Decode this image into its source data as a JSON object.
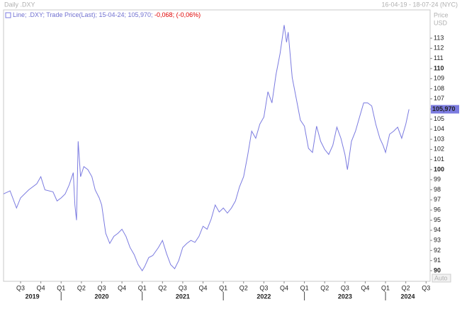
{
  "chart_data": {
    "type": "line",
    "title": "Daily .DXY",
    "date_range": "16-04-19 - 18-07-24 (NYC)",
    "legend": {
      "text": "Line; .DXY; Trade Price(Last); 15-04-24; 105,970;",
      "change": "-0,068;",
      "change_pct": "(-0,06%)"
    },
    "axis_title": [
      "Price",
      "USD"
    ],
    "scale_mode": "Auto",
    "color": "#7b7be0",
    "x": [
      2019.29,
      2019.37,
      2019.45,
      2019.5,
      2019.6,
      2019.7,
      2019.75,
      2019.8,
      2019.9,
      2019.95,
      2020.0,
      2020.05,
      2020.1,
      2020.15,
      2020.17,
      2020.19,
      2020.21,
      2020.24,
      2020.28,
      2020.33,
      2020.38,
      2020.42,
      2020.47,
      2020.5,
      2020.55,
      2020.6,
      2020.65,
      2020.7,
      2020.75,
      2020.8,
      2020.85,
      2020.9,
      2020.95,
      2021.0,
      2021.03,
      2021.08,
      2021.13,
      2021.2,
      2021.25,
      2021.3,
      2021.35,
      2021.4,
      2021.45,
      2021.5,
      2021.55,
      2021.6,
      2021.65,
      2021.7,
      2021.75,
      2021.8,
      2021.85,
      2021.9,
      2021.95,
      2022.0,
      2022.05,
      2022.1,
      2022.15,
      2022.2,
      2022.25,
      2022.3,
      2022.35,
      2022.4,
      2022.45,
      2022.5,
      2022.55,
      2022.6,
      2022.65,
      2022.7,
      2022.75,
      2022.78,
      2022.8,
      2022.85,
      2022.9,
      2022.95,
      2023.0,
      2023.05,
      2023.1,
      2023.15,
      2023.2,
      2023.25,
      2023.3,
      2023.35,
      2023.4,
      2023.45,
      2023.5,
      2023.53,
      2023.58,
      2023.63,
      2023.68,
      2023.73,
      2023.78,
      2023.83,
      2023.88,
      2023.93,
      2023.97,
      2024.0,
      2024.05,
      2024.1,
      2024.15,
      2024.2,
      2024.25,
      2024.29
    ],
    "values": [
      97.6,
      97.9,
      96.2,
      97.2,
      98.0,
      98.6,
      99.3,
      98.0,
      97.8,
      96.9,
      97.2,
      97.6,
      98.5,
      99.7,
      96.5,
      95.0,
      102.8,
      99.3,
      100.3,
      100.0,
      99.3,
      98.0,
      97.2,
      96.5,
      93.7,
      92.7,
      93.4,
      93.7,
      94.1,
      93.4,
      92.3,
      91.6,
      90.6,
      90.0,
      90.4,
      91.3,
      91.5,
      92.3,
      93.0,
      91.7,
      90.6,
      90.2,
      91.0,
      92.3,
      92.7,
      93.0,
      92.8,
      93.4,
      94.4,
      94.1,
      95.1,
      96.5,
      95.8,
      96.2,
      95.7,
      96.2,
      96.9,
      98.3,
      99.3,
      101.4,
      103.8,
      103.1,
      104.5,
      105.2,
      107.7,
      106.6,
      109.4,
      111.5,
      114.3,
      112.6,
      113.6,
      109.1,
      107.0,
      104.9,
      104.3,
      102.1,
      101.7,
      104.3,
      102.8,
      102.0,
      101.5,
      102.4,
      104.2,
      103.1,
      101.5,
      100.0,
      102.8,
      103.8,
      105.2,
      106.6,
      106.6,
      106.3,
      104.5,
      103.1,
      102.4,
      101.7,
      103.5,
      103.8,
      104.2,
      103.1,
      104.5,
      105.97
    ],
    "current_label": {
      "value": 105.97,
      "label": "105,970"
    },
    "xlim": [
      2019.29,
      2024.55
    ],
    "ylim": [
      88.95,
      115.8
    ],
    "yticks": [
      90,
      91,
      92,
      93,
      94,
      95,
      96,
      97,
      98,
      99,
      100,
      101,
      102,
      103,
      104,
      105,
      106,
      107,
      108,
      109,
      110,
      111,
      112,
      113
    ],
    "xticks": [
      {
        "value": 2019.5,
        "label": "Q3"
      },
      {
        "value": 2019.75,
        "label": "Q4"
      },
      {
        "value": 2020,
        "label": "Q1"
      },
      {
        "value": 2020.25,
        "label": "Q2"
      },
      {
        "value": 2020.5,
        "label": "Q3"
      },
      {
        "value": 2020.75,
        "label": "Q4"
      },
      {
        "value": 2021,
        "label": "Q1"
      },
      {
        "value": 2021.25,
        "label": "Q2"
      },
      {
        "value": 2021.5,
        "label": "Q3"
      },
      {
        "value": 2021.75,
        "label": "Q4"
      },
      {
        "value": 2022,
        "label": "Q1"
      },
      {
        "value": 2022.25,
        "label": "Q2"
      },
      {
        "value": 2022.5,
        "label": "Q3"
      },
      {
        "value": 2022.75,
        "label": "Q4"
      },
      {
        "value": 2023,
        "label": "Q1"
      },
      {
        "value": 2023.25,
        "label": "Q2"
      },
      {
        "value": 2023.5,
        "label": "Q3"
      },
      {
        "value": 2023.75,
        "label": "Q4"
      },
      {
        "value": 2024,
        "label": "Q1"
      },
      {
        "value": 2024.25,
        "label": "Q2"
      },
      {
        "value": 2024.5,
        "label": "Q3"
      }
    ],
    "years": [
      2019,
      2020,
      2021,
      2022,
      2023,
      2024
    ]
  }
}
